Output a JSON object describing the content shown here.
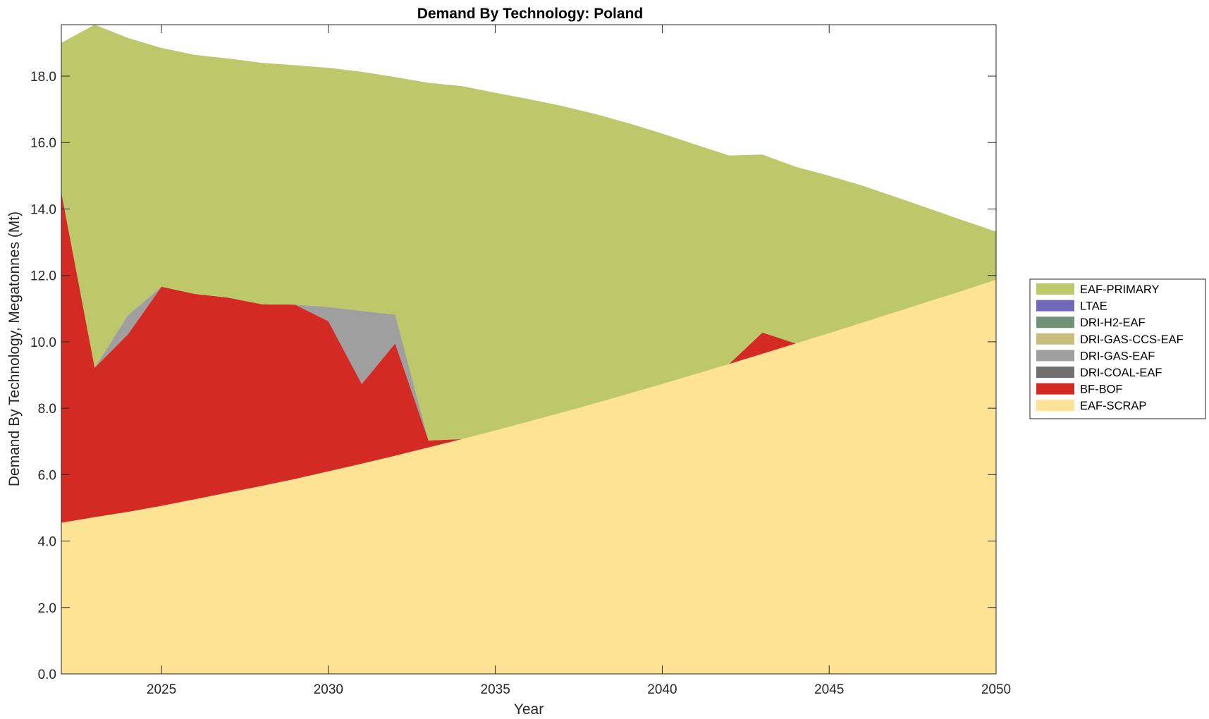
{
  "chart_data": {
    "type": "area",
    "title": "Demand By Technology: Poland",
    "xlabel": "Year",
    "ylabel": "Demand By Technology, Megatonnes (Mt)",
    "xlim": [
      2022,
      2050
    ],
    "ylim": [
      0,
      19.55
    ],
    "x_ticks": [
      2025,
      2030,
      2035,
      2040,
      2045,
      2050
    ],
    "y_ticks": [
      0,
      2,
      4,
      6,
      8,
      10,
      12,
      14,
      16,
      18
    ],
    "y_tick_labels": [
      "0.0",
      "2.0",
      "4.0",
      "6.0",
      "8.0",
      "10.0",
      "12.0",
      "14.0",
      "16.0",
      "18.0"
    ],
    "legend_position": "right",
    "x": [
      2022,
      2023,
      2024,
      2025,
      2026,
      2027,
      2028,
      2029,
      2030,
      2031,
      2032,
      2033,
      2034,
      2035,
      2036,
      2037,
      2038,
      2039,
      2040,
      2041,
      2042,
      2043,
      2044,
      2045,
      2046,
      2047,
      2048,
      2049,
      2050
    ],
    "stack_order": [
      "EAF-SCRAP",
      "BF-BOF",
      "DRI-COAL-EAF",
      "DRI-GAS-EAF",
      "DRI-GAS-CCS-EAF",
      "DRI-H2-EAF",
      "LTAE",
      "EAF-PRIMARY"
    ],
    "legend_order": [
      "EAF-PRIMARY",
      "LTAE",
      "DRI-H2-EAF",
      "DRI-GAS-CCS-EAF",
      "DRI-GAS-EAF",
      "DRI-COAL-EAF",
      "BF-BOF",
      "EAF-SCRAP"
    ],
    "series": [
      {
        "name": "EAF-SCRAP",
        "color": "#fde393",
        "values": [
          4.55,
          4.72,
          4.88,
          5.06,
          5.26,
          5.46,
          5.66,
          5.87,
          6.1,
          6.33,
          6.57,
          6.82,
          7.07,
          7.33,
          7.6,
          7.87,
          8.15,
          8.44,
          8.73,
          9.03,
          9.33,
          9.64,
          9.95,
          10.26,
          10.58,
          10.9,
          11.22,
          11.54,
          11.87
        ]
      },
      {
        "name": "BF-BOF",
        "color": "#d32a24",
        "values": [
          9.95,
          4.5,
          5.35,
          6.6,
          6.18,
          5.87,
          5.47,
          5.25,
          4.52,
          2.4,
          3.38,
          0.21,
          0,
          0,
          0,
          0,
          0,
          0,
          0,
          0,
          0,
          0.64,
          0,
          0,
          0,
          0,
          0,
          0,
          0
        ]
      },
      {
        "name": "DRI-COAL-EAF",
        "color": "#707070",
        "values": [
          0,
          0,
          0,
          0,
          0,
          0,
          0,
          0,
          0,
          0,
          0,
          0,
          0,
          0,
          0,
          0,
          0,
          0,
          0,
          0,
          0,
          0,
          0,
          0,
          0,
          0,
          0,
          0,
          0
        ]
      },
      {
        "name": "DRI-GAS-EAF",
        "color": "#9f9f9f",
        "values": [
          0,
          0,
          0.58,
          0,
          0,
          0,
          0,
          0,
          0.43,
          2.2,
          0.87,
          0,
          0,
          0,
          0,
          0,
          0,
          0,
          0,
          0,
          0,
          0,
          0,
          0,
          0,
          0,
          0,
          0,
          0
        ]
      },
      {
        "name": "DRI-GAS-CCS-EAF",
        "color": "#c7bd7f",
        "values": [
          0,
          0,
          0,
          0,
          0,
          0,
          0,
          0,
          0,
          0,
          0,
          0,
          0,
          0,
          0,
          0,
          0,
          0,
          0,
          0,
          0,
          0,
          0,
          0,
          0,
          0,
          0,
          0,
          0
        ]
      },
      {
        "name": "DRI-H2-EAF",
        "color": "#6f9276",
        "values": [
          0,
          0,
          0,
          0,
          0,
          0,
          0,
          0,
          0,
          0,
          0,
          0,
          0,
          0,
          0,
          0,
          0,
          0,
          0,
          0,
          0,
          0,
          0,
          0,
          0,
          0,
          0,
          0,
          0
        ]
      },
      {
        "name": "LTAE",
        "color": "#7168ba",
        "values": [
          0,
          0,
          0,
          0,
          0,
          0,
          0,
          0,
          0,
          0,
          0,
          0,
          0,
          0,
          0,
          0,
          0,
          0,
          0,
          0,
          0,
          0,
          0,
          0,
          0,
          0,
          0,
          0,
          0
        ]
      },
      {
        "name": "EAF-PRIMARY",
        "color": "#bdc86b",
        "values": [
          4.5,
          10.33,
          8.34,
          7.19,
          7.2,
          7.2,
          7.27,
          7.21,
          7.2,
          7.2,
          7.15,
          10.77,
          10.63,
          10.17,
          9.71,
          9.23,
          8.71,
          8.14,
          7.54,
          6.91,
          6.28,
          5.36,
          5.32,
          4.74,
          4.12,
          3.46,
          2.79,
          2.12,
          1.45
        ]
      }
    ]
  }
}
